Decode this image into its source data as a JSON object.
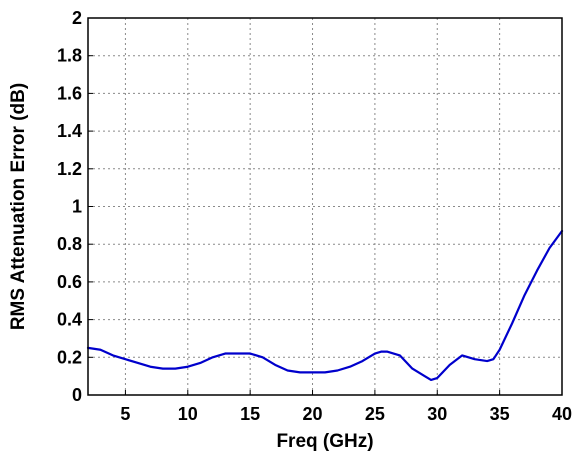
{
  "chart_data": {
    "type": "line",
    "title": "",
    "xlabel": "Freq (GHz)",
    "ylabel": "RMS Attenuation Error (dB)",
    "xlim": [
      2,
      40
    ],
    "ylim": [
      0,
      2
    ],
    "x_ticks": [
      5,
      10,
      15,
      20,
      25,
      30,
      35,
      40
    ],
    "y_ticks": [
      0,
      0.2,
      0.4,
      0.6,
      0.8,
      1,
      1.2,
      1.4,
      1.6,
      1.8,
      2
    ],
    "x_tick_labels": [
      "5",
      "10",
      "15",
      "20",
      "25",
      "30",
      "35",
      "40"
    ],
    "y_tick_labels": [
      "0",
      "0.2",
      "0.4",
      "0.6",
      "0.8",
      "1",
      "1.2",
      "1.4",
      "1.6",
      "1.8",
      "2"
    ],
    "grid": true,
    "grid_style": "dotted",
    "legend": "none",
    "series": [
      {
        "color": "#0000cc",
        "x": [
          2,
          3,
          4,
          5,
          6,
          7,
          8,
          9,
          10,
          11,
          12,
          13,
          14,
          15,
          16,
          17,
          18,
          19,
          20,
          21,
          22,
          23,
          24,
          25,
          25.5,
          26,
          27,
          28,
          29,
          29.5,
          30,
          31,
          32,
          33,
          34,
          34.5,
          35,
          36,
          37,
          38,
          39,
          40
        ],
        "y": [
          0.25,
          0.24,
          0.21,
          0.19,
          0.17,
          0.15,
          0.14,
          0.14,
          0.15,
          0.17,
          0.2,
          0.22,
          0.22,
          0.22,
          0.2,
          0.16,
          0.13,
          0.12,
          0.12,
          0.12,
          0.13,
          0.15,
          0.18,
          0.22,
          0.23,
          0.23,
          0.21,
          0.14,
          0.1,
          0.08,
          0.09,
          0.16,
          0.21,
          0.19,
          0.18,
          0.19,
          0.24,
          0.38,
          0.53,
          0.66,
          0.78,
          0.87
        ]
      }
    ]
  }
}
